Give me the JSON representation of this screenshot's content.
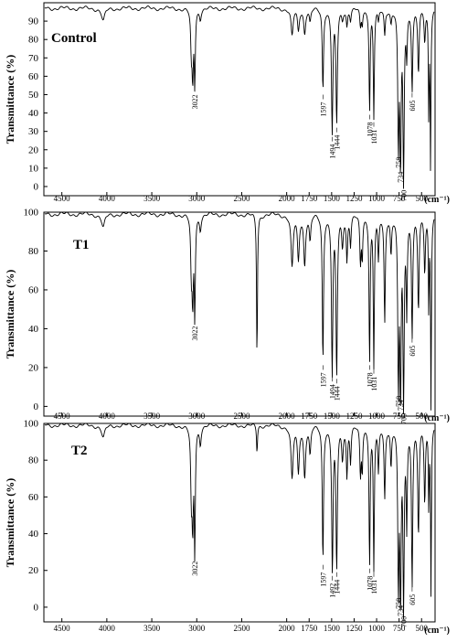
{
  "chart_data": [
    {
      "type": "line",
      "title": "Control",
      "xlabel": "",
      "ylabel": "Transmittance (%)",
      "x_unit": "(cm⁻¹)",
      "xlim": [
        4700,
        350
      ],
      "ylim": [
        -5,
        100
      ],
      "xticks": [
        4500,
        4000,
        3500,
        3000,
        2500,
        2000,
        1750,
        1500,
        1250,
        1000,
        750,
        500
      ],
      "yticks": [
        0,
        10,
        20,
        30,
        40,
        50,
        60,
        70,
        80,
        90
      ],
      "baseline": 97,
      "grid": false,
      "peaks": [
        {
          "x": 4040,
          "y": 90,
          "w": 22
        },
        {
          "x": 3060,
          "y": 74,
          "w": 9
        },
        {
          "x": 3045,
          "y": 62,
          "w": 8
        },
        {
          "x": 3022,
          "y": 57,
          "w": 7
        },
        {
          "x": 2960,
          "y": 92,
          "w": 10
        },
        {
          "x": 1940,
          "y": 82,
          "w": 14
        },
        {
          "x": 1870,
          "y": 85,
          "w": 12
        },
        {
          "x": 1800,
          "y": 84,
          "w": 12
        },
        {
          "x": 1740,
          "y": 90,
          "w": 10
        },
        {
          "x": 1597,
          "y": 53,
          "w": 8
        },
        {
          "x": 1494,
          "y": 30,
          "w": 9
        },
        {
          "x": 1444,
          "y": 35,
          "w": 9
        },
        {
          "x": 1380,
          "y": 92,
          "w": 10
        },
        {
          "x": 1330,
          "y": 88,
          "w": 8
        },
        {
          "x": 1290,
          "y": 91,
          "w": 8
        },
        {
          "x": 1180,
          "y": 87,
          "w": 8
        },
        {
          "x": 1160,
          "y": 89,
          "w": 7
        },
        {
          "x": 1078,
          "y": 42,
          "w": 7
        },
        {
          "x": 1031,
          "y": 38,
          "w": 7
        },
        {
          "x": 980,
          "y": 90,
          "w": 8
        },
        {
          "x": 910,
          "y": 83,
          "w": 8
        },
        {
          "x": 840,
          "y": 90,
          "w": 8
        },
        {
          "x": 758,
          "y": 23,
          "w": 8
        },
        {
          "x": 734,
          "y": 15,
          "w": 8
        },
        {
          "x": 700,
          "y": 5,
          "w": 8
        },
        {
          "x": 665,
          "y": 74,
          "w": 7
        },
        {
          "x": 605,
          "y": 54,
          "w": 8
        },
        {
          "x": 535,
          "y": 62,
          "w": 9
        },
        {
          "x": 465,
          "y": 80,
          "w": 8
        },
        {
          "x": 420,
          "y": 38,
          "w": 5
        },
        {
          "x": 400,
          "y": 12,
          "w": 5
        }
      ],
      "annotations": [
        {
          "text": "3022",
          "x": 3022,
          "y": 57
        },
        {
          "text": "1597",
          "x": 1597,
          "y": 53
        },
        {
          "text": "1494",
          "x": 1494,
          "y": 30
        },
        {
          "text": "1444",
          "x": 1444,
          "y": 35
        },
        {
          "text": "1078",
          "x": 1078,
          "y": 42
        },
        {
          "text": "1031",
          "x": 1031,
          "y": 38
        },
        {
          "text": "758",
          "x": 758,
          "y": 23
        },
        {
          "text": "734",
          "x": 734,
          "y": 15
        },
        {
          "text": "700",
          "x": 700,
          "y": 5
        },
        {
          "text": "605",
          "x": 605,
          "y": 54
        }
      ]
    },
    {
      "type": "line",
      "title": "T1",
      "xlabel": "",
      "ylabel": "Transmittance (%)",
      "x_unit": "(cm⁻¹)",
      "xlim": [
        4700,
        350
      ],
      "ylim": [
        -5,
        100
      ],
      "xticks": [
        4500,
        4000,
        3500,
        3000,
        2500,
        2000,
        1750,
        1500,
        1250,
        1000,
        750,
        500
      ],
      "yticks": [
        0,
        20,
        40,
        60,
        80,
        100
      ],
      "baseline": 99,
      "grid": false,
      "peaks": [
        {
          "x": 4040,
          "y": 92,
          "w": 22
        },
        {
          "x": 3060,
          "y": 70,
          "w": 9
        },
        {
          "x": 3045,
          "y": 58,
          "w": 8
        },
        {
          "x": 3022,
          "y": 48,
          "w": 7
        },
        {
          "x": 2960,
          "y": 92,
          "w": 10
        },
        {
          "x": 2330,
          "y": 24,
          "w": 6
        },
        {
          "x": 1940,
          "y": 72,
          "w": 14
        },
        {
          "x": 1870,
          "y": 76,
          "w": 12
        },
        {
          "x": 1800,
          "y": 74,
          "w": 12
        },
        {
          "x": 1740,
          "y": 86,
          "w": 10
        },
        {
          "x": 1597,
          "y": 24,
          "w": 8
        },
        {
          "x": 1494,
          "y": 18,
          "w": 9
        },
        {
          "x": 1444,
          "y": 17,
          "w": 9
        },
        {
          "x": 1380,
          "y": 84,
          "w": 10
        },
        {
          "x": 1330,
          "y": 76,
          "w": 8
        },
        {
          "x": 1290,
          "y": 84,
          "w": 8
        },
        {
          "x": 1180,
          "y": 74,
          "w": 8
        },
        {
          "x": 1160,
          "y": 78,
          "w": 7
        },
        {
          "x": 1078,
          "y": 24,
          "w": 7
        },
        {
          "x": 1031,
          "y": 22,
          "w": 7
        },
        {
          "x": 980,
          "y": 76,
          "w": 8
        },
        {
          "x": 910,
          "y": 44,
          "w": 8
        },
        {
          "x": 840,
          "y": 80,
          "w": 8
        },
        {
          "x": 758,
          "y": 12,
          "w": 8
        },
        {
          "x": 734,
          "y": 10,
          "w": 8
        },
        {
          "x": 700,
          "y": 3,
          "w": 8
        },
        {
          "x": 665,
          "y": 52,
          "w": 7
        },
        {
          "x": 605,
          "y": 38,
          "w": 8
        },
        {
          "x": 535,
          "y": 50,
          "w": 9
        },
        {
          "x": 465,
          "y": 70,
          "w": 8
        },
        {
          "x": 420,
          "y": 50,
          "w": 5
        },
        {
          "x": 395,
          "y": 0,
          "w": 5
        }
      ],
      "annotations": [
        {
          "text": "3022",
          "x": 3022,
          "y": 48
        },
        {
          "text": "1597",
          "x": 1597,
          "y": 24
        },
        {
          "text": "1494",
          "x": 1494,
          "y": 18
        },
        {
          "text": "1444",
          "x": 1444,
          "y": 17
        },
        {
          "text": "1078",
          "x": 1078,
          "y": 24
        },
        {
          "text": "1031",
          "x": 1031,
          "y": 22
        },
        {
          "text": "758",
          "x": 758,
          "y": 12
        },
        {
          "text": "734",
          "x": 734,
          "y": 10
        },
        {
          "text": "700",
          "x": 700,
          "y": 3
        },
        {
          "text": "605",
          "x": 605,
          "y": 38
        }
      ]
    },
    {
      "type": "line",
      "title": "T2",
      "xlabel": "",
      "ylabel": "Transmittance (%)",
      "x_unit": "(cm⁻¹)",
      "xlim": [
        4700,
        350
      ],
      "ylim": [
        -8,
        100
      ],
      "xticks": [
        4500,
        4000,
        3500,
        3000,
        2500,
        2000,
        1750,
        1500,
        1250,
        1000,
        750,
        500
      ],
      "yticks": [
        0,
        20,
        40,
        60,
        80,
        100
      ],
      "baseline": 99,
      "grid": false,
      "peaks": [
        {
          "x": 4040,
          "y": 92,
          "w": 22
        },
        {
          "x": 3060,
          "y": 62,
          "w": 9
        },
        {
          "x": 3045,
          "y": 50,
          "w": 8
        },
        {
          "x": 3022,
          "y": 32,
          "w": 7
        },
        {
          "x": 2960,
          "y": 90,
          "w": 10
        },
        {
          "x": 2330,
          "y": 84,
          "w": 6
        },
        {
          "x": 1940,
          "y": 70,
          "w": 14
        },
        {
          "x": 1870,
          "y": 74,
          "w": 12
        },
        {
          "x": 1800,
          "y": 72,
          "w": 12
        },
        {
          "x": 1740,
          "y": 84,
          "w": 10
        },
        {
          "x": 1597,
          "y": 26,
          "w": 8
        },
        {
          "x": 1492,
          "y": 20,
          "w": 9
        },
        {
          "x": 1444,
          "y": 22,
          "w": 9
        },
        {
          "x": 1380,
          "y": 82,
          "w": 10
        },
        {
          "x": 1330,
          "y": 72,
          "w": 8
        },
        {
          "x": 1290,
          "y": 80,
          "w": 8
        },
        {
          "x": 1180,
          "y": 72,
          "w": 8
        },
        {
          "x": 1160,
          "y": 76,
          "w": 7
        },
        {
          "x": 1078,
          "y": 24,
          "w": 7
        },
        {
          "x": 1031,
          "y": 22,
          "w": 7
        },
        {
          "x": 980,
          "y": 74,
          "w": 8
        },
        {
          "x": 910,
          "y": 60,
          "w": 8
        },
        {
          "x": 840,
          "y": 78,
          "w": 8
        },
        {
          "x": 758,
          "y": 12,
          "w": 8
        },
        {
          "x": 734,
          "y": 8,
          "w": 8
        },
        {
          "x": 700,
          "y": 2,
          "w": 8
        },
        {
          "x": 665,
          "y": 48,
          "w": 7
        },
        {
          "x": 605,
          "y": 14,
          "w": 8
        },
        {
          "x": 535,
          "y": 40,
          "w": 9
        },
        {
          "x": 465,
          "y": 58,
          "w": 8
        },
        {
          "x": 420,
          "y": 55,
          "w": 5
        },
        {
          "x": 395,
          "y": 8,
          "w": 5
        }
      ],
      "annotations": [
        {
          "text": "3022",
          "x": 3022,
          "y": 32
        },
        {
          "text": "1597",
          "x": 1597,
          "y": 26
        },
        {
          "text": "1492",
          "x": 1492,
          "y": 20
        },
        {
          "text": "1444",
          "x": 1444,
          "y": 22
        },
        {
          "text": "1078",
          "x": 1078,
          "y": 24
        },
        {
          "text": "1031",
          "x": 1031,
          "y": 22
        },
        {
          "text": "758",
          "x": 758,
          "y": 12
        },
        {
          "text": "734",
          "x": 734,
          "y": 8
        },
        {
          "text": "700",
          "x": 700,
          "y": 2
        },
        {
          "text": "605",
          "x": 605,
          "y": 14
        }
      ]
    }
  ]
}
